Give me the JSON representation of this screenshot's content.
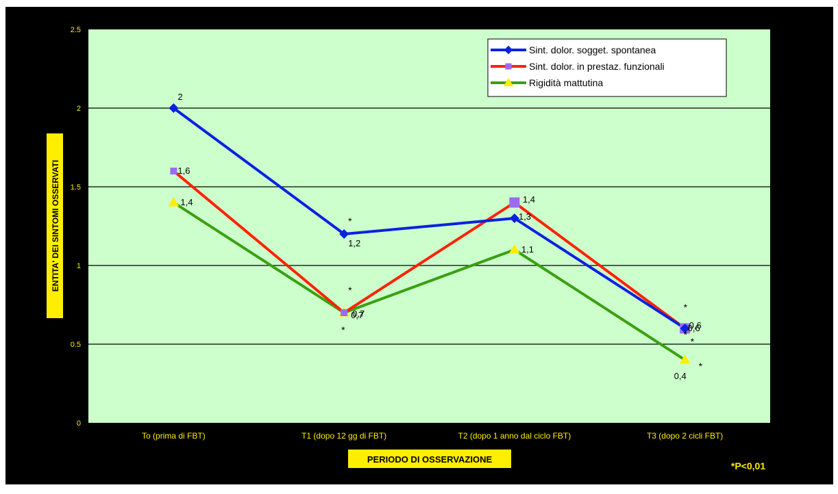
{
  "chart_data": {
    "type": "line",
    "categories": [
      "To (prima di FBT)",
      "T1 (dopo 12 gg di FBT)",
      "T2 (dopo 1 anno dal ciclo FBT)",
      "T3 (dopo 2 cicli FBT)"
    ],
    "ylim": [
      0,
      2.5
    ],
    "yticks": [
      "0",
      "0.5",
      "1",
      "1.5",
      "2",
      "2.5"
    ],
    "ylabel": "ENTITA' DEI SINTOMI OSSERVATI",
    "xlabel": "PERIODO DI OSSERVAZIONE",
    "note": "*P<0,01",
    "grid": true,
    "legend_position": "top-right",
    "series": [
      {
        "name": "Sint. dolor. sogget. spontanea",
        "values": [
          2,
          1.2,
          1.3,
          0.6
        ],
        "labels": [
          "2",
          "1,2",
          "1,3",
          "0,6"
        ],
        "color": "#0a22e0",
        "marker": "diamond"
      },
      {
        "name": "Sint. dolor. in prestaz. funzionali",
        "values": [
          1.6,
          0.7,
          1.4,
          0.6
        ],
        "labels": [
          "1,6",
          "0,7",
          "1,4",
          "0,6"
        ],
        "color": "#ff2200",
        "marker": "square",
        "marker_color": "#9b6cf0"
      },
      {
        "name": "Rigidità mattutina",
        "values": [
          1.4,
          0.7,
          1.1,
          0.4
        ],
        "labels": [
          "1,4",
          "0,7",
          "1,1",
          "0,4"
        ],
        "color": "#3aa010",
        "marker": "triangle",
        "marker_color": "#ffee00"
      }
    ],
    "significance_marks": [
      "*",
      "*",
      "*",
      "*",
      "*",
      "*",
      "*"
    ]
  },
  "colors": {
    "frame": "#000000",
    "plot_area": "#ccffcc",
    "label_box": "#ffee00",
    "axis_text": "#ffee00"
  }
}
